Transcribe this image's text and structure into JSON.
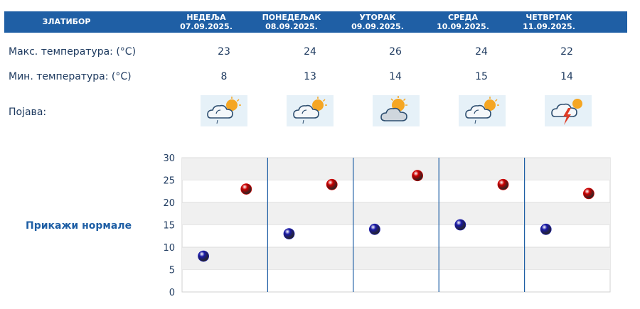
{
  "location": "ЗЛАТИБОР",
  "days": [
    {
      "name": "НЕДЕЉА",
      "date": "07.09.2025.",
      "max": "23",
      "min": "8",
      "icon": "partly-cloudy-rain-icon"
    },
    {
      "name": "ПОНЕДЕЉАК",
      "date": "08.09.2025.",
      "max": "24",
      "min": "13",
      "icon": "partly-cloudy-rain-icon"
    },
    {
      "name": "УТОРАК",
      "date": "09.09.2025.",
      "max": "26",
      "min": "14",
      "icon": "partly-cloudy-icon"
    },
    {
      "name": "СРЕДА",
      "date": "10.09.2025.",
      "max": "24",
      "min": "15",
      "icon": "partly-cloudy-rain-icon"
    },
    {
      "name": "ЧЕТВРТАК",
      "date": "11.09.2025.",
      "max": "22",
      "min": "14",
      "icon": "thunderstorm-icon"
    }
  ],
  "labels": {
    "max_temp": "Макс. температура: (°C)",
    "min_temp": "Мин. температура: (°C)",
    "phenomenon": "Појава:"
  },
  "normals_link": "Прикажи нормале",
  "colors": {
    "header": "#1f5fa5",
    "max_marker": "#cc0000",
    "min_marker": "#1a1aa8"
  },
  "chart_data": {
    "type": "scatter",
    "categories": [
      "07.09.2025.",
      "08.09.2025.",
      "09.09.2025.",
      "10.09.2025.",
      "11.09.2025."
    ],
    "series": [
      {
        "values": [
          8,
          13,
          14,
          15,
          14
        ],
        "color": "#1a1aa8"
      },
      {
        "values": [
          23,
          24,
          26,
          24,
          22
        ],
        "color": "#cc0000"
      }
    ],
    "ylim": [
      0,
      30
    ],
    "yticks": [
      "0",
      "5",
      "10",
      "15",
      "20",
      "25",
      "30"
    ],
    "grid": true,
    "alternating_bands": true
  }
}
